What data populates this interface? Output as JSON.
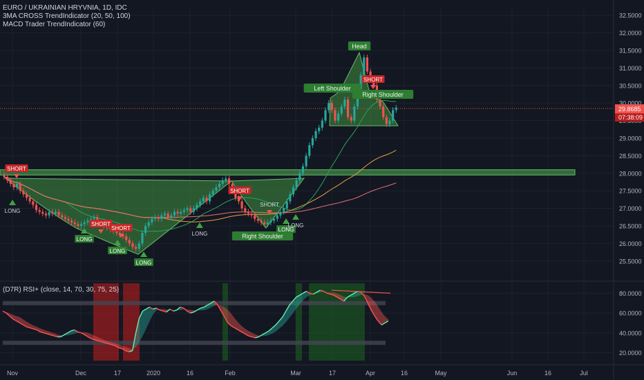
{
  "legends": {
    "main": "EURO / UKRAINIAN HRYVNIA, 1D, IDC",
    "ma": "3MA CROSS TrendIndicator (20, 50, 100)",
    "macd": "MACD Trader TrendIndicator (60)",
    "rsi": "(D7R) RSI+ (close, 14, 70, 30, 75, 25)"
  },
  "colors": {
    "background": "#131722",
    "up": "#26a69a",
    "down": "#ef5350",
    "grid": "#1e222d",
    "pattern_fill": "#3f8f3f",
    "label_green": "#2e7d32",
    "label_red": "#c62828",
    "price_badge": "#ef5350",
    "ma_fast": "#26a65b",
    "ma_mid": "#e8a045",
    "ma_slow": "#e57373"
  },
  "price_badge": {
    "price": "29.8685",
    "countdown": "07:38:09"
  },
  "chart_data": [
    {
      "type": "candlestick",
      "title": "EURO / UKRAINIAN HRYVNIA, 1D, IDC",
      "x_ticks": [
        "Nov",
        "Dec",
        "17",
        "2020",
        "16",
        "Feb",
        "Mar",
        "17",
        "Apr",
        "16",
        "May",
        "Jun",
        "16",
        "Jul"
      ],
      "y_ticks": [
        "25.5000",
        "26.0000",
        "26.5000",
        "27.0000",
        "27.5000",
        "28.0000",
        "28.5000",
        "29.0000",
        "29.5000",
        "30.0000",
        "30.5000",
        "31.0000",
        "31.5000",
        "32.0000",
        "32.5000"
      ],
      "ylim": [
        25.2,
        32.7
      ],
      "series_close": [
        27.9,
        27.8,
        27.7,
        27.6,
        27.7,
        27.5,
        27.4,
        27.3,
        27.2,
        27.1,
        26.95,
        26.9,
        26.85,
        26.8,
        26.9,
        26.85,
        26.9,
        26.8,
        26.75,
        26.7,
        26.65,
        26.6,
        26.55,
        26.5,
        26.55,
        26.6,
        26.65,
        26.7,
        26.75,
        26.6,
        26.55,
        26.5,
        26.45,
        26.4,
        26.35,
        26.3,
        26.25,
        26.2,
        26.1,
        26.0,
        25.9,
        25.85,
        26.0,
        26.3,
        26.5,
        26.6,
        26.7,
        26.75,
        26.7,
        26.8,
        26.85,
        26.75,
        26.8,
        26.9,
        26.85,
        26.9,
        26.95,
        27.0,
        26.9,
        27.0,
        27.1,
        27.2,
        27.3,
        27.2,
        27.4,
        27.5,
        27.6,
        27.7,
        27.8,
        27.85,
        27.7,
        27.5,
        27.3,
        27.2,
        27.0,
        26.9,
        26.85,
        26.8,
        26.7,
        26.65,
        26.6,
        26.55,
        26.6,
        26.65,
        26.7,
        26.8,
        26.9,
        27.0,
        27.2,
        27.4,
        27.6,
        27.8,
        28.0,
        28.2,
        28.5,
        28.8,
        29.0,
        29.2,
        29.3,
        29.5,
        29.8,
        30.0,
        29.8,
        29.5,
        29.7,
        29.9,
        30.1,
        29.6,
        29.5,
        29.9,
        30.4,
        30.8,
        31.3,
        30.9,
        30.7,
        30.5,
        30.1,
        29.9,
        29.6,
        29.4,
        29.5,
        29.8,
        29.87
      ],
      "resistance_zone": [
        27.95,
        28.1
      ],
      "pattern_labels": [
        "Head",
        "Left Shoulder",
        "Right Shoulder",
        "Right Shoulder"
      ],
      "signals": [
        {
          "text": "SHORT",
          "kind": "short"
        },
        {
          "text": "LONG",
          "kind": "long"
        },
        {
          "text": "SHORT",
          "kind": "short"
        },
        {
          "text": "SHORT",
          "kind": "short"
        },
        {
          "text": "LONG",
          "kind": "long"
        },
        {
          "text": "LONG",
          "kind": "long"
        },
        {
          "text": "LONG",
          "kind": "long"
        },
        {
          "text": "LONG",
          "kind": "long"
        },
        {
          "text": "SHORT",
          "kind": "short"
        },
        {
          "text": "SHORT",
          "kind": "short"
        },
        {
          "text": "LONG",
          "kind": "long"
        },
        {
          "text": "LONG",
          "kind": "long"
        },
        {
          "text": "SHORT",
          "kind": "short"
        }
      ]
    },
    {
      "type": "line",
      "title": "(D7R) RSI+ (close, 14, 70, 30, 75, 25)",
      "y_ticks": [
        "20.0000",
        "40.0000",
        "60.0000",
        "80.0000"
      ],
      "ylim": [
        12,
        90
      ],
      "levels": [
        70,
        30
      ],
      "values": [
        62,
        60,
        57,
        54,
        52,
        50,
        48,
        46,
        45,
        44,
        43,
        41,
        40,
        39,
        38,
        37,
        36,
        36,
        38,
        40,
        42,
        43,
        41,
        40,
        38,
        36,
        34,
        33,
        32,
        31,
        30,
        29,
        28,
        27,
        25,
        24,
        22,
        21,
        22,
        40,
        55,
        62,
        64,
        66,
        64,
        65,
        63,
        62,
        61,
        64,
        62,
        63,
        66,
        65,
        62,
        60,
        61,
        63,
        65,
        66,
        68,
        70,
        72,
        68,
        62,
        56,
        50,
        47,
        45,
        43,
        41,
        39,
        37,
        36,
        35,
        36,
        38,
        40,
        42,
        45,
        48,
        52,
        56,
        62,
        68,
        72,
        76,
        78,
        80,
        82,
        80,
        79,
        81,
        83,
        82,
        80,
        79,
        78,
        76,
        74,
        72,
        76,
        78,
        80,
        82,
        81,
        77,
        70,
        63,
        57,
        52,
        48,
        50,
        52
      ]
    }
  ]
}
